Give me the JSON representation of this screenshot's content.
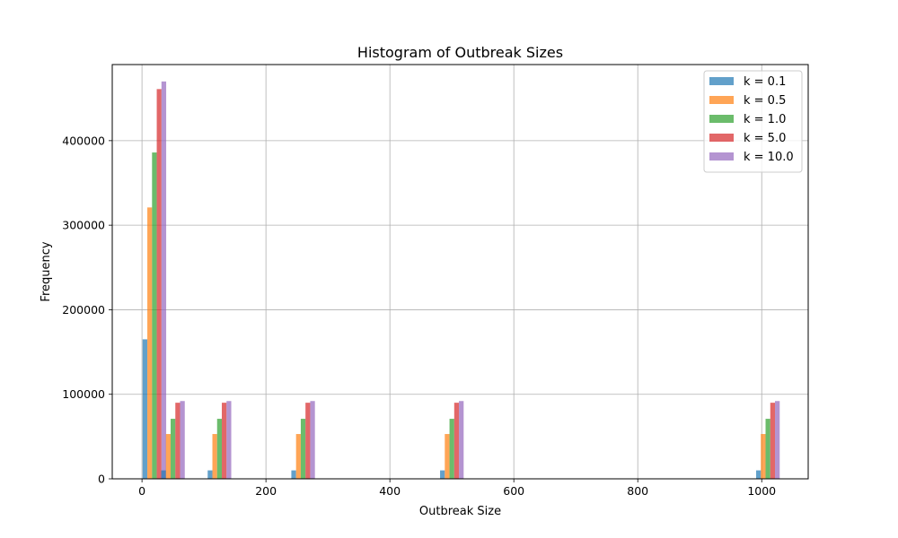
{
  "chart_data": {
    "type": "bar",
    "title": "Histogram of Outbreak Sizes",
    "xlabel": "Outbreak Size",
    "ylabel": "Frequency",
    "xlim": [
      -48,
      1075
    ],
    "ylim": [
      0,
      490000
    ],
    "xticks": [
      0,
      200,
      400,
      600,
      800,
      1000
    ],
    "yticks": [
      0,
      100000,
      200000,
      300000,
      400000
    ],
    "grid": true,
    "legend_position": "top-right",
    "categories": [
      20,
      50,
      125,
      260,
      500,
      1010
    ],
    "series": [
      {
        "name": "k = 0.1",
        "color": "#1f77b4",
        "values": [
          165000,
          10000,
          10000,
          10000,
          10000,
          10000
        ]
      },
      {
        "name": "k = 0.5",
        "color": "#ff7f0e",
        "values": [
          321000,
          53000,
          53000,
          53000,
          53000,
          53000
        ]
      },
      {
        "name": "k = 1.0",
        "color": "#2ca02c",
        "values": [
          386000,
          71000,
          71000,
          71000,
          71000,
          71000
        ]
      },
      {
        "name": "k = 5.0",
        "color": "#d62728",
        "values": [
          461000,
          90000,
          90000,
          90000,
          90000,
          90000
        ]
      },
      {
        "name": "k = 10.0",
        "color": "#9467bd",
        "values": [
          470000,
          92000,
          92000,
          92000,
          92000,
          92000
        ]
      }
    ]
  }
}
